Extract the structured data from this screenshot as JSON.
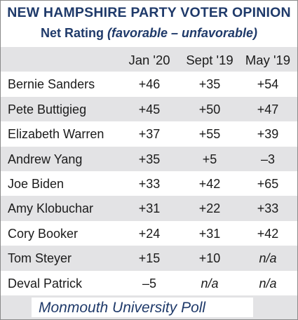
{
  "title": "NEW HAMPSHIRE PARTY VOTER OPINION",
  "subtitle": {
    "main": "Net Rating",
    "italic": "(favorable – unfavorable)"
  },
  "source": "Monmouth University Poll",
  "chart_data": {
    "type": "table",
    "columns": [
      "Jan '20",
      "Sept '19",
      "May '19"
    ],
    "rows": [
      {
        "name": "Bernie Sanders",
        "values": [
          "+46",
          "+35",
          "+54"
        ]
      },
      {
        "name": "Pete Buttigieg",
        "values": [
          "+45",
          "+50",
          "+47"
        ]
      },
      {
        "name": "Elizabeth Warren",
        "values": [
          "+37",
          "+55",
          "+39"
        ]
      },
      {
        "name": "Andrew Yang",
        "values": [
          "+35",
          "+5",
          "–3"
        ]
      },
      {
        "name": "Joe Biden",
        "values": [
          "+33",
          "+42",
          "+65"
        ]
      },
      {
        "name": "Amy Klobuchar",
        "values": [
          "+31",
          "+22",
          "+33"
        ]
      },
      {
        "name": "Cory Booker",
        "values": [
          "+24",
          "+31",
          "+42"
        ]
      },
      {
        "name": "Tom Steyer",
        "values": [
          "+15",
          "+10",
          "n/a"
        ]
      },
      {
        "name": "Deval Patrick",
        "values": [
          "–5",
          "n/a",
          "n/a"
        ]
      }
    ]
  }
}
